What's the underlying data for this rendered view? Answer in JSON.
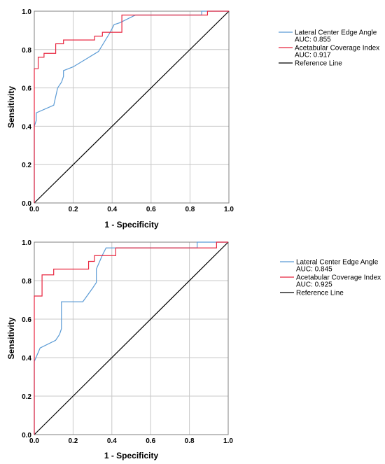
{
  "chart_data": [
    {
      "type": "line",
      "xlabel": "1 - Specificity",
      "ylabel": "Sensitivity",
      "xlim": [
        0,
        1
      ],
      "ylim": [
        0,
        1
      ],
      "x_ticks": [
        "0.0",
        "0.2",
        "0.4",
        "0.6",
        "0.8",
        "1.0"
      ],
      "y_ticks": [
        "0.0",
        "0.2",
        "0.4",
        "0.6",
        "0.8",
        "1.0"
      ],
      "grid": true,
      "legend_position": "right",
      "series": [
        {
          "name": "Lateral Center Edge Angle",
          "auc_label": "AUC: 0.855",
          "color": "#5b9bd5",
          "x": [
            0,
            0,
            0.01,
            0.01,
            0.1,
            0.12,
            0.14,
            0.15,
            0.15,
            0.2,
            0.33,
            0.39,
            0.41,
            0.44,
            0.52,
            0.86,
            0.86,
            0.93,
            1.0
          ],
          "y": [
            0,
            0.4,
            0.43,
            0.47,
            0.51,
            0.6,
            0.63,
            0.66,
            0.69,
            0.71,
            0.79,
            0.89,
            0.93,
            0.94,
            0.98,
            0.98,
            1.0,
            1.0,
            1.0
          ]
        },
        {
          "name": "Acetabular Coverage Index",
          "auc_label": "AUC: 0.917",
          "color": "#e8253f",
          "x": [
            0,
            0,
            0.02,
            0.02,
            0.05,
            0.05,
            0.11,
            0.11,
            0.15,
            0.15,
            0.31,
            0.31,
            0.35,
            0.35,
            0.45,
            0.45,
            0.89,
            0.89,
            1.0
          ],
          "y": [
            0,
            0.7,
            0.7,
            0.76,
            0.76,
            0.78,
            0.78,
            0.83,
            0.83,
            0.85,
            0.85,
            0.87,
            0.87,
            0.89,
            0.89,
            0.98,
            0.98,
            1.0,
            1.0
          ]
        },
        {
          "name": "Reference Line",
          "color": "#000000",
          "x": [
            0,
            1
          ],
          "y": [
            0,
            1
          ]
        }
      ]
    },
    {
      "type": "line",
      "xlabel": "1 - Specificity",
      "ylabel": "Sensitivity",
      "xlim": [
        0,
        1
      ],
      "ylim": [
        0,
        1
      ],
      "x_ticks": [
        "0.0",
        "0.2",
        "0.4",
        "0.6",
        "0.8",
        "1.0"
      ],
      "y_ticks": [
        "0.0",
        "0.2",
        "0.4",
        "0.6",
        "0.8",
        "1.0"
      ],
      "grid": true,
      "legend_position": "right",
      "series": [
        {
          "name": "Lateral Center Edge Angle",
          "auc_label": "AUC: 0.845",
          "color": "#5b9bd5",
          "x": [
            0,
            0,
            0.03,
            0.11,
            0.13,
            0.14,
            0.14,
            0.25,
            0.3,
            0.32,
            0.32,
            0.35,
            0.37,
            0.84,
            0.84,
            0.95,
            1.0
          ],
          "y": [
            0,
            0.38,
            0.45,
            0.49,
            0.52,
            0.55,
            0.69,
            0.69,
            0.76,
            0.79,
            0.86,
            0.93,
            0.97,
            0.97,
            1.0,
            1.0,
            1.0
          ]
        },
        {
          "name": "Acetabular Coverage Index",
          "auc_label": "AUC: 0.925",
          "color": "#e8253f",
          "x": [
            0,
            0,
            0.04,
            0.04,
            0.1,
            0.1,
            0.28,
            0.28,
            0.31,
            0.31,
            0.42,
            0.42,
            0.94,
            0.94,
            1.0
          ],
          "y": [
            0,
            0.72,
            0.72,
            0.83,
            0.83,
            0.86,
            0.86,
            0.9,
            0.9,
            0.93,
            0.93,
            0.97,
            0.97,
            1.0,
            1.0
          ]
        },
        {
          "name": "Reference Line",
          "color": "#000000",
          "x": [
            0,
            1
          ],
          "y": [
            0,
            1
          ]
        }
      ]
    }
  ]
}
